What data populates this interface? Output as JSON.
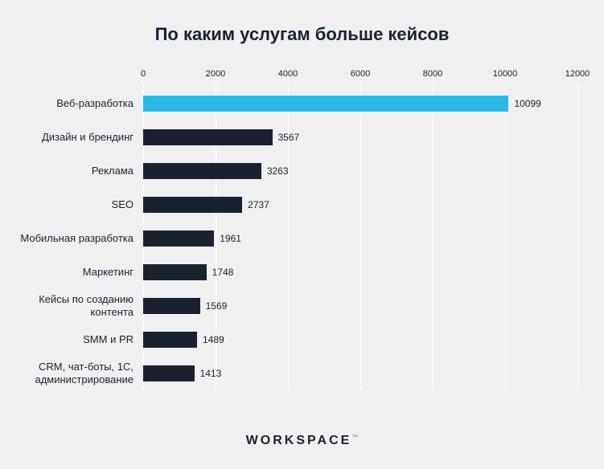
{
  "title": "По каким услугам больше кейсов",
  "footer": {
    "logo": "WORKSPACE",
    "trademark": "™"
  },
  "chart_data": {
    "type": "bar",
    "orientation": "horizontal",
    "title": "По каким услугам больше кейсов",
    "categories": [
      "Веб-разработка",
      "Дизайн и брендинг",
      "Реклама",
      "SEO",
      "Мобильная разработка",
      "Маркетинг",
      "Кейсы по созданию контента",
      "SMM и PR",
      "CRM, чат-боты, 1С, администрирование"
    ],
    "values": [
      10099,
      3567,
      3263,
      2737,
      1961,
      1748,
      1569,
      1489,
      1413
    ],
    "xlim": [
      0,
      12000
    ],
    "ticks": [
      0,
      2000,
      4000,
      6000,
      8000,
      10000,
      12000
    ],
    "axis_position": "top",
    "grid": true,
    "gridline_color": "#ffffff",
    "bar_color": "#18222f",
    "highlight_color": "#29b9e7",
    "highlight_index": 0,
    "background_color": "#f0f0f1"
  }
}
